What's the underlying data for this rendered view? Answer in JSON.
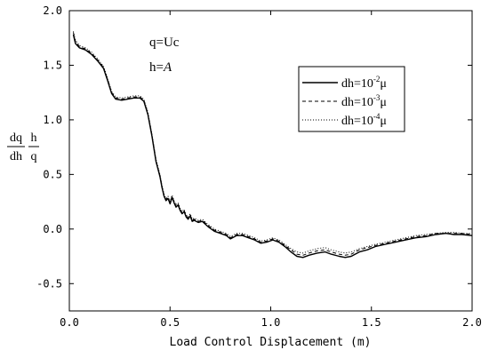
{
  "chart_data": {
    "type": "line",
    "xlabel": "Load Control Displacement (m)",
    "ylabel": {
      "num_left": "dq",
      "den_left": "dh",
      "num_right": "h",
      "den_right": "q"
    },
    "xlim": [
      0,
      2.0
    ],
    "ylim": [
      -0.75,
      2.0
    ],
    "x_ticks": [
      0.0,
      0.5,
      1.0,
      1.5,
      2.0
    ],
    "x_tick_labels": [
      "0.0",
      "0.5",
      "1.0",
      "1.5",
      "2.0"
    ],
    "y_ticks": [
      -0.5,
      0.0,
      0.5,
      1.0,
      1.5,
      2.0
    ],
    "y_tick_labels": [
      "-0.5",
      "0.0",
      "0.5",
      "1.0",
      "1.5",
      "2.0"
    ],
    "grid": false,
    "legend_position": "top-right",
    "annotations": [
      {
        "text": "q=Uc"
      },
      {
        "prefix": "h=",
        "italic": "A"
      }
    ],
    "legend": [
      {
        "label_prefix": "dh=10",
        "exponent": "-2",
        "unit": "μ",
        "style": "solid"
      },
      {
        "label_prefix": "dh=10",
        "exponent": "-3",
        "unit": "μ",
        "style": "dashed"
      },
      {
        "label_prefix": "dh=10",
        "exponent": "-4",
        "unit": "μ",
        "style": "dotted"
      }
    ],
    "series": [
      {
        "style": "solid",
        "points": [
          [
            0.02,
            1.78
          ],
          [
            0.03,
            1.7
          ],
          [
            0.05,
            1.66
          ],
          [
            0.08,
            1.64
          ],
          [
            0.11,
            1.6
          ],
          [
            0.14,
            1.54
          ],
          [
            0.17,
            1.47
          ],
          [
            0.19,
            1.36
          ],
          [
            0.21,
            1.24
          ],
          [
            0.23,
            1.19
          ],
          [
            0.26,
            1.18
          ],
          [
            0.29,
            1.19
          ],
          [
            0.32,
            1.2
          ],
          [
            0.35,
            1.2
          ],
          [
            0.37,
            1.17
          ],
          [
            0.39,
            1.05
          ],
          [
            0.41,
            0.85
          ],
          [
            0.43,
            0.62
          ],
          [
            0.45,
            0.48
          ],
          [
            0.46,
            0.38
          ],
          [
            0.47,
            0.3
          ],
          [
            0.48,
            0.26
          ],
          [
            0.49,
            0.28
          ],
          [
            0.5,
            0.23
          ],
          [
            0.51,
            0.29
          ],
          [
            0.52,
            0.24
          ],
          [
            0.53,
            0.2
          ],
          [
            0.54,
            0.22
          ],
          [
            0.55,
            0.17
          ],
          [
            0.56,
            0.14
          ],
          [
            0.57,
            0.16
          ],
          [
            0.58,
            0.11
          ],
          [
            0.59,
            0.09
          ],
          [
            0.6,
            0.12
          ],
          [
            0.61,
            0.07
          ],
          [
            0.62,
            0.08
          ],
          [
            0.64,
            0.06
          ],
          [
            0.66,
            0.07
          ],
          [
            0.69,
            0.02
          ],
          [
            0.72,
            -0.02
          ],
          [
            0.75,
            -0.04
          ],
          [
            0.78,
            -0.06
          ],
          [
            0.8,
            -0.09
          ],
          [
            0.83,
            -0.06
          ],
          [
            0.86,
            -0.06
          ],
          [
            0.89,
            -0.08
          ],
          [
            0.92,
            -0.1
          ],
          [
            0.95,
            -0.13
          ],
          [
            0.98,
            -0.12
          ],
          [
            1.01,
            -0.1
          ],
          [
            1.04,
            -0.12
          ],
          [
            1.07,
            -0.16
          ],
          [
            1.1,
            -0.21
          ],
          [
            1.13,
            -0.25
          ],
          [
            1.16,
            -0.26
          ],
          [
            1.19,
            -0.24
          ],
          [
            1.23,
            -0.22
          ],
          [
            1.27,
            -0.21
          ],
          [
            1.3,
            -0.23
          ],
          [
            1.34,
            -0.25
          ],
          [
            1.37,
            -0.26
          ],
          [
            1.4,
            -0.25
          ],
          [
            1.44,
            -0.21
          ],
          [
            1.48,
            -0.19
          ],
          [
            1.52,
            -0.16
          ],
          [
            1.57,
            -0.14
          ],
          [
            1.62,
            -0.12
          ],
          [
            1.67,
            -0.1
          ],
          [
            1.72,
            -0.08
          ],
          [
            1.77,
            -0.07
          ],
          [
            1.82,
            -0.05
          ],
          [
            1.87,
            -0.04
          ],
          [
            1.91,
            -0.05
          ],
          [
            1.95,
            -0.05
          ],
          [
            2.0,
            -0.06
          ]
        ]
      },
      {
        "style": "dashed",
        "points": [
          [
            0.02,
            1.8
          ],
          [
            0.03,
            1.72
          ],
          [
            0.05,
            1.67
          ],
          [
            0.08,
            1.65
          ],
          [
            0.11,
            1.61
          ],
          [
            0.14,
            1.55
          ],
          [
            0.17,
            1.48
          ],
          [
            0.19,
            1.37
          ],
          [
            0.21,
            1.25
          ],
          [
            0.23,
            1.2
          ],
          [
            0.26,
            1.19
          ],
          [
            0.29,
            1.2
          ],
          [
            0.32,
            1.21
          ],
          [
            0.35,
            1.21
          ],
          [
            0.37,
            1.18
          ],
          [
            0.39,
            1.06
          ],
          [
            0.41,
            0.86
          ],
          [
            0.43,
            0.63
          ],
          [
            0.45,
            0.49
          ],
          [
            0.46,
            0.39
          ],
          [
            0.47,
            0.31
          ],
          [
            0.48,
            0.27
          ],
          [
            0.49,
            0.29
          ],
          [
            0.5,
            0.24
          ],
          [
            0.51,
            0.3
          ],
          [
            0.52,
            0.25
          ],
          [
            0.53,
            0.21
          ],
          [
            0.54,
            0.23
          ],
          [
            0.55,
            0.18
          ],
          [
            0.56,
            0.15
          ],
          [
            0.57,
            0.17
          ],
          [
            0.58,
            0.12
          ],
          [
            0.59,
            0.1
          ],
          [
            0.6,
            0.13
          ],
          [
            0.61,
            0.08
          ],
          [
            0.62,
            0.09
          ],
          [
            0.64,
            0.07
          ],
          [
            0.66,
            0.08
          ],
          [
            0.69,
            0.03
          ],
          [
            0.72,
            -0.01
          ],
          [
            0.75,
            -0.03
          ],
          [
            0.78,
            -0.05
          ],
          [
            0.8,
            -0.08
          ],
          [
            0.83,
            -0.05
          ],
          [
            0.86,
            -0.05
          ],
          [
            0.89,
            -0.07
          ],
          [
            0.92,
            -0.09
          ],
          [
            0.95,
            -0.12
          ],
          [
            0.98,
            -0.11
          ],
          [
            1.01,
            -0.09
          ],
          [
            1.04,
            -0.11
          ],
          [
            1.07,
            -0.15
          ],
          [
            1.1,
            -0.19
          ],
          [
            1.13,
            -0.23
          ],
          [
            1.16,
            -0.24
          ],
          [
            1.19,
            -0.22
          ],
          [
            1.23,
            -0.2
          ],
          [
            1.27,
            -0.19
          ],
          [
            1.3,
            -0.21
          ],
          [
            1.34,
            -0.23
          ],
          [
            1.37,
            -0.24
          ],
          [
            1.4,
            -0.23
          ],
          [
            1.44,
            -0.19
          ],
          [
            1.48,
            -0.17
          ],
          [
            1.52,
            -0.15
          ],
          [
            1.57,
            -0.13
          ],
          [
            1.62,
            -0.11
          ],
          [
            1.67,
            -0.09
          ],
          [
            1.72,
            -0.07
          ],
          [
            1.77,
            -0.06
          ],
          [
            1.82,
            -0.04
          ],
          [
            1.87,
            -0.04
          ],
          [
            1.91,
            -0.04
          ],
          [
            1.95,
            -0.04
          ],
          [
            2.0,
            -0.05
          ]
        ]
      },
      {
        "style": "dotted",
        "points": [
          [
            0.02,
            1.81
          ],
          [
            0.03,
            1.73
          ],
          [
            0.05,
            1.68
          ],
          [
            0.08,
            1.66
          ],
          [
            0.11,
            1.62
          ],
          [
            0.14,
            1.56
          ],
          [
            0.17,
            1.49
          ],
          [
            0.19,
            1.38
          ],
          [
            0.21,
            1.26
          ],
          [
            0.23,
            1.21
          ],
          [
            0.26,
            1.2
          ],
          [
            0.29,
            1.21
          ],
          [
            0.32,
            1.22
          ],
          [
            0.35,
            1.22
          ],
          [
            0.37,
            1.19
          ],
          [
            0.39,
            1.07
          ],
          [
            0.41,
            0.87
          ],
          [
            0.43,
            0.64
          ],
          [
            0.45,
            0.5
          ],
          [
            0.46,
            0.4
          ],
          [
            0.47,
            0.32
          ],
          [
            0.48,
            0.28
          ],
          [
            0.49,
            0.3
          ],
          [
            0.5,
            0.25
          ],
          [
            0.51,
            0.31
          ],
          [
            0.52,
            0.26
          ],
          [
            0.53,
            0.22
          ],
          [
            0.54,
            0.24
          ],
          [
            0.55,
            0.19
          ],
          [
            0.56,
            0.16
          ],
          [
            0.57,
            0.18
          ],
          [
            0.58,
            0.13
          ],
          [
            0.59,
            0.11
          ],
          [
            0.6,
            0.14
          ],
          [
            0.61,
            0.09
          ],
          [
            0.62,
            0.1
          ],
          [
            0.64,
            0.08
          ],
          [
            0.66,
            0.09
          ],
          [
            0.69,
            0.04
          ],
          [
            0.72,
            0.0
          ],
          [
            0.75,
            -0.02
          ],
          [
            0.78,
            -0.04
          ],
          [
            0.8,
            -0.07
          ],
          [
            0.83,
            -0.04
          ],
          [
            0.86,
            -0.04
          ],
          [
            0.89,
            -0.06
          ],
          [
            0.92,
            -0.08
          ],
          [
            0.95,
            -0.11
          ],
          [
            0.98,
            -0.1
          ],
          [
            1.01,
            -0.08
          ],
          [
            1.04,
            -0.1
          ],
          [
            1.07,
            -0.14
          ],
          [
            1.1,
            -0.18
          ],
          [
            1.13,
            -0.21
          ],
          [
            1.16,
            -0.22
          ],
          [
            1.19,
            -0.2
          ],
          [
            1.23,
            -0.18
          ],
          [
            1.27,
            -0.17
          ],
          [
            1.3,
            -0.19
          ],
          [
            1.34,
            -0.21
          ],
          [
            1.37,
            -0.22
          ],
          [
            1.4,
            -0.21
          ],
          [
            1.44,
            -0.18
          ],
          [
            1.48,
            -0.16
          ],
          [
            1.52,
            -0.14
          ],
          [
            1.57,
            -0.12
          ],
          [
            1.62,
            -0.1
          ],
          [
            1.67,
            -0.08
          ],
          [
            1.72,
            -0.06
          ],
          [
            1.77,
            -0.05
          ],
          [
            1.82,
            -0.04
          ],
          [
            1.87,
            -0.03
          ],
          [
            1.91,
            -0.03
          ],
          [
            1.95,
            -0.04
          ],
          [
            2.0,
            -0.04
          ]
        ]
      }
    ]
  }
}
